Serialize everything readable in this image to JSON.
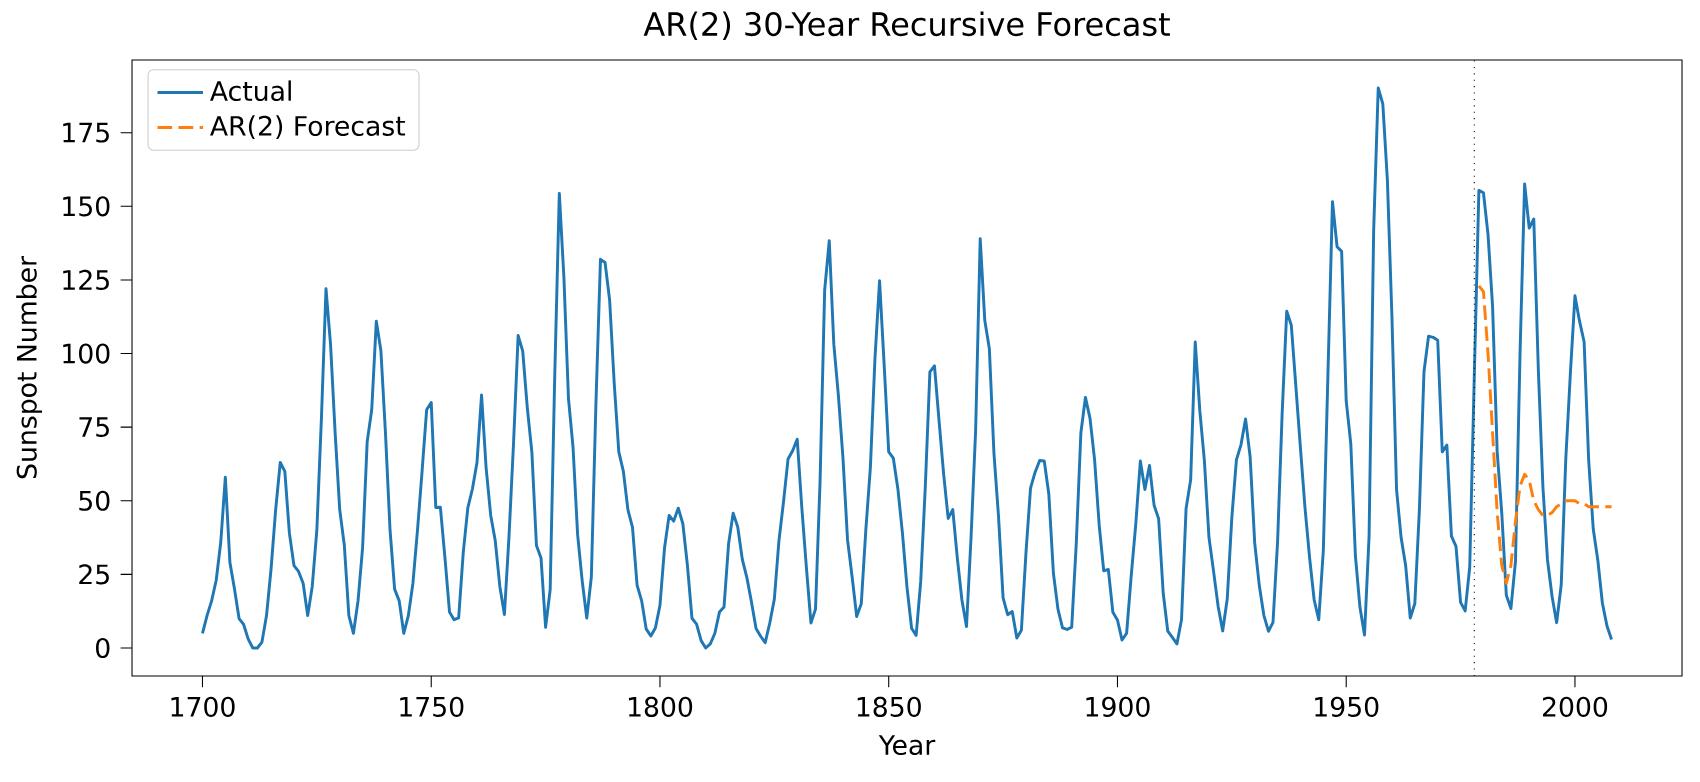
{
  "chart_data": {
    "type": "line",
    "title": "AR(2) 30-Year Recursive Forecast",
    "xlabel": "Year",
    "ylabel": "Sunspot Number",
    "xlim": [
      1684.6,
      2023.4
    ],
    "ylim": [
      -9.5,
      199.7
    ],
    "xticks": [
      1700,
      1750,
      1800,
      1850,
      1900,
      1950,
      2000
    ],
    "yticks": [
      0,
      25,
      50,
      75,
      100,
      125,
      150,
      175
    ],
    "legend": "top left",
    "grid": false,
    "ref_lines": [
      {
        "axis": "x",
        "value": 1978,
        "label": null,
        "color": "#000000",
        "line_style": "dotted"
      }
    ],
    "series": [
      {
        "name": "Actual",
        "color": "#1f77b4",
        "line_style": "solid",
        "x": [
          1700,
          1701,
          1702,
          1703,
          1704,
          1705,
          1706,
          1707,
          1708,
          1709,
          1710,
          1711,
          1712,
          1713,
          1714,
          1715,
          1716,
          1717,
          1718,
          1719,
          1720,
          1721,
          1722,
          1723,
          1724,
          1725,
          1726,
          1727,
          1728,
          1729,
          1730,
          1731,
          1732,
          1733,
          1734,
          1735,
          1736,
          1737,
          1738,
          1739,
          1740,
          1741,
          1742,
          1743,
          1744,
          1745,
          1746,
          1747,
          1748,
          1749,
          1750,
          1751,
          1752,
          1753,
          1754,
          1755,
          1756,
          1757,
          1758,
          1759,
          1760,
          1761,
          1762,
          1763,
          1764,
          1765,
          1766,
          1767,
          1768,
          1769,
          1770,
          1771,
          1772,
          1773,
          1774,
          1775,
          1776,
          1777,
          1778,
          1779,
          1780,
          1781,
          1782,
          1783,
          1784,
          1785,
          1786,
          1787,
          1788,
          1789,
          1790,
          1791,
          1792,
          1793,
          1794,
          1795,
          1796,
          1797,
          1798,
          1799,
          1800,
          1801,
          1802,
          1803,
          1804,
          1805,
          1806,
          1807,
          1808,
          1809,
          1810,
          1811,
          1812,
          1813,
          1814,
          1815,
          1816,
          1817,
          1818,
          1819,
          1820,
          1821,
          1822,
          1823,
          1824,
          1825,
          1826,
          1827,
          1828,
          1829,
          1830,
          1831,
          1832,
          1833,
          1834,
          1835,
          1836,
          1837,
          1838,
          1839,
          1840,
          1841,
          1842,
          1843,
          1844,
          1845,
          1846,
          1847,
          1848,
          1849,
          1850,
          1851,
          1852,
          1853,
          1854,
          1855,
          1856,
          1857,
          1858,
          1859,
          1860,
          1861,
          1862,
          1863,
          1864,
          1865,
          1866,
          1867,
          1868,
          1869,
          1870,
          1871,
          1872,
          1873,
          1874,
          1875,
          1876,
          1877,
          1878,
          1879,
          1880,
          1881,
          1882,
          1883,
          1884,
          1885,
          1886,
          1887,
          1888,
          1889,
          1890,
          1891,
          1892,
          1893,
          1894,
          1895,
          1896,
          1897,
          1898,
          1899,
          1900,
          1901,
          1902,
          1903,
          1904,
          1905,
          1906,
          1907,
          1908,
          1909,
          1910,
          1911,
          1912,
          1913,
          1914,
          1915,
          1916,
          1917,
          1918,
          1919,
          1920,
          1921,
          1922,
          1923,
          1924,
          1925,
          1926,
          1927,
          1928,
          1929,
          1930,
          1931,
          1932,
          1933,
          1934,
          1935,
          1936,
          1937,
          1938,
          1939,
          1940,
          1941,
          1942,
          1943,
          1944,
          1945,
          1946,
          1947,
          1948,
          1949,
          1950,
          1951,
          1952,
          1953,
          1954,
          1955,
          1956,
          1957,
          1958,
          1959,
          1960,
          1961,
          1962,
          1963,
          1964,
          1965,
          1966,
          1967,
          1968,
          1969,
          1970,
          1971,
          1972,
          1973,
          1974,
          1975,
          1976,
          1977,
          1978,
          1979,
          1980,
          1981,
          1982,
          1983,
          1984,
          1985,
          1986,
          1987,
          1988,
          1989,
          1990,
          1991,
          1992,
          1993,
          1994,
          1995,
          1996,
          1997,
          1998,
          1999,
          2000,
          2001,
          2002,
          2003,
          2004,
          2005,
          2006,
          2007,
          2008
        ],
        "values": [
          5.0,
          11.0,
          16.0,
          23.0,
          36.0,
          58.0,
          29.0,
          20.0,
          10.0,
          8.0,
          3.0,
          0.0,
          0.0,
          2.0,
          11.0,
          27.0,
          47.0,
          63.0,
          60.0,
          39.0,
          28.0,
          26.0,
          22.0,
          11.0,
          21.0,
          40.0,
          78.0,
          122.0,
          103.0,
          73.0,
          47.0,
          35.0,
          11.0,
          5.0,
          16.0,
          34.0,
          70.0,
          81.0,
          111.0,
          101.0,
          73.0,
          40.0,
          20.0,
          16.0,
          5.0,
          11.0,
          22.0,
          40.0,
          60.0,
          80.9,
          83.4,
          47.7,
          47.8,
          30.7,
          12.2,
          9.6,
          10.2,
          32.4,
          47.6,
          54.0,
          62.9,
          85.9,
          61.2,
          45.1,
          36.4,
          20.9,
          11.4,
          37.8,
          69.8,
          106.1,
          100.8,
          81.6,
          66.5,
          34.8,
          30.6,
          7.0,
          19.8,
          92.5,
          154.4,
          125.9,
          84.8,
          68.1,
          38.5,
          22.8,
          10.2,
          24.1,
          82.9,
          132.0,
          130.9,
          118.1,
          89.9,
          66.6,
          60.0,
          46.9,
          41.0,
          21.3,
          16.0,
          6.4,
          4.1,
          6.8,
          14.5,
          34.0,
          45.0,
          43.1,
          47.5,
          42.2,
          28.1,
          10.1,
          8.1,
          2.5,
          0.0,
          1.4,
          5.0,
          12.2,
          13.9,
          35.4,
          45.8,
          41.1,
          30.1,
          23.9,
          15.6,
          6.6,
          4.0,
          1.8,
          8.5,
          16.6,
          36.3,
          49.6,
          64.2,
          67.0,
          70.9,
          47.8,
          27.5,
          8.5,
          13.2,
          56.9,
          121.5,
          138.3,
          103.2,
          85.7,
          64.6,
          36.7,
          24.2,
          10.7,
          15.0,
          40.1,
          61.5,
          98.5,
          124.7,
          96.3,
          66.6,
          64.5,
          54.1,
          39.0,
          20.6,
          6.7,
          4.3,
          22.7,
          54.8,
          93.8,
          95.8,
          77.2,
          59.1,
          44.0,
          47.0,
          30.5,
          16.3,
          7.3,
          37.6,
          74.0,
          139.0,
          111.2,
          101.6,
          66.2,
          44.7,
          17.0,
          11.3,
          12.4,
          3.4,
          6.0,
          32.3,
          54.3,
          59.7,
          63.7,
          63.5,
          52.2,
          25.4,
          13.1,
          6.8,
          6.3,
          7.1,
          35.6,
          73.0,
          85.1,
          78.0,
          64.0,
          41.8,
          26.2,
          26.7,
          12.1,
          9.5,
          2.7,
          5.0,
          24.4,
          42.0,
          63.5,
          53.8,
          62.0,
          48.5,
          43.9,
          18.6,
          5.7,
          3.6,
          1.4,
          9.6,
          47.4,
          57.1,
          103.9,
          80.6,
          63.6,
          37.6,
          26.1,
          14.2,
          5.8,
          16.7,
          44.3,
          63.9,
          69.0,
          77.8,
          64.9,
          35.7,
          21.2,
          11.1,
          5.7,
          8.7,
          36.1,
          79.7,
          114.4,
          109.6,
          88.8,
          67.8,
          47.5,
          30.6,
          16.3,
          9.6,
          33.2,
          92.6,
          151.6,
          136.3,
          134.7,
          83.9,
          69.4,
          31.5,
          13.9,
          4.4,
          38.0,
          141.7,
          190.2,
          184.8,
          159.0,
          112.3,
          53.9,
          37.5,
          27.9,
          10.2,
          15.1,
          47.0,
          93.8,
          105.9,
          105.5,
          104.5,
          66.6,
          68.9,
          38.0,
          34.5,
          15.5,
          12.6,
          27.5,
          92.5,
          155.4,
          154.6,
          140.4,
          115.9,
          66.6,
          45.9,
          17.9,
          13.4,
          29.4,
          100.2,
          157.6,
          142.6,
          145.7,
          94.3,
          54.6,
          29.9,
          17.5,
          8.6,
          21.5,
          64.3,
          93.3,
          119.6,
          111.0,
          104.0,
          63.7,
          40.4,
          29.8,
          15.2,
          7.5,
          2.9
        ]
      },
      {
        "name": "AR(2) Forecast",
        "color": "#ff7f0e",
        "line_style": "dashed",
        "x": [
          1979,
          1980,
          1981,
          1982,
          1983,
          1984,
          1985,
          1986,
          1987,
          1988,
          1989,
          1990,
          1991,
          1992,
          1993,
          1994,
          1995,
          1996,
          1997,
          1998,
          1999,
          2000,
          2001,
          2002,
          2003,
          2004,
          2005,
          2006,
          2007,
          2008
        ],
        "values": [
          123,
          121,
          100,
          73,
          46,
          28,
          22,
          28,
          43,
          55,
          59,
          57,
          50,
          47,
          45,
          45,
          46,
          48,
          49,
          50,
          50,
          50,
          49,
          49,
          48,
          48,
          48,
          48,
          48,
          48
        ]
      }
    ]
  }
}
